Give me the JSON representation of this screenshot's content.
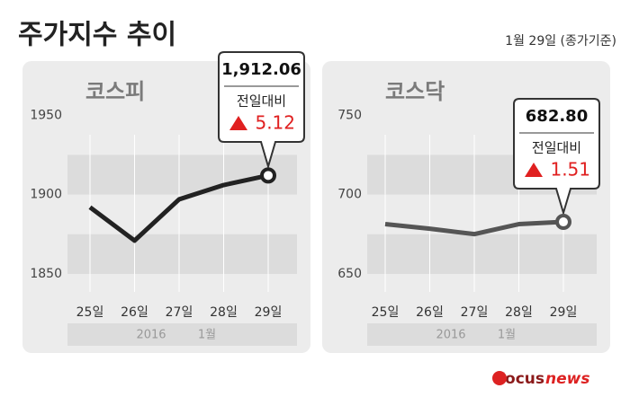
{
  "title": "주가지수 추이",
  "subtitle": "1월 29일 (종가기준)",
  "logo": [
    "Focus",
    "news"
  ],
  "chart_data": [
    {
      "type": "line",
      "title": "코스피",
      "categories": [
        "25일",
        "26일",
        "27일",
        "28일",
        "29일"
      ],
      "values": [
        1892,
        1871,
        1897,
        1906,
        1912.06
      ],
      "value_labels": [
        null,
        null,
        null,
        null,
        "1,912.06"
      ],
      "color": "#222222",
      "ylim": [
        1850,
        1966
      ],
      "yticks": [
        1850,
        1900,
        1950
      ],
      "period": [
        "2016",
        "1월"
      ],
      "change_label": "전일대비",
      "change": 5.12
    },
    {
      "type": "line",
      "title": "코스닥",
      "categories": [
        "25일",
        "26일",
        "27일",
        "28일",
        "29일"
      ],
      "values": [
        681.4,
        678.5,
        675.1,
        681.4,
        682.8
      ],
      "value_labels": [
        null,
        null,
        null,
        null,
        "682.80"
      ],
      "color": "#555555",
      "ylim": [
        650,
        766
      ],
      "yticks": [
        650,
        700,
        750
      ],
      "period": [
        "2016",
        "1월"
      ],
      "change_label": "전일대비",
      "change": 1.51
    }
  ]
}
